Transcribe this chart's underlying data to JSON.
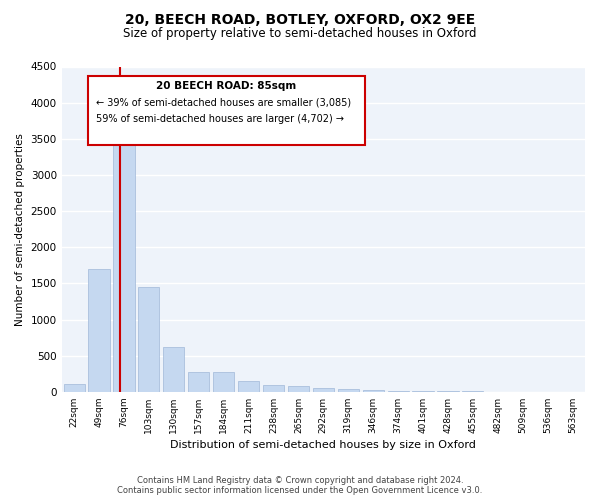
{
  "title": "20, BEECH ROAD, BOTLEY, OXFORD, OX2 9EE",
  "subtitle": "Size of property relative to semi-detached houses in Oxford",
  "xlabel": "Distribution of semi-detached houses by size in Oxford",
  "ylabel": "Number of semi-detached properties",
  "categories": [
    "22sqm",
    "49sqm",
    "76sqm",
    "103sqm",
    "130sqm",
    "157sqm",
    "184sqm",
    "211sqm",
    "238sqm",
    "265sqm",
    "292sqm",
    "319sqm",
    "346sqm",
    "374sqm",
    "401sqm",
    "428sqm",
    "455sqm",
    "482sqm",
    "509sqm",
    "536sqm",
    "563sqm"
  ],
  "values": [
    110,
    1700,
    3500,
    1450,
    620,
    270,
    270,
    145,
    95,
    80,
    55,
    40,
    30,
    15,
    10,
    8,
    5,
    4,
    3,
    3,
    3
  ],
  "bar_color": "#c5d8f0",
  "bar_edge_color": "#a0b8d8",
  "property_label": "20 BEECH ROAD: 85sqm",
  "pct_smaller": 39,
  "n_smaller": 3085,
  "pct_larger": 59,
  "n_larger": 4702,
  "vline_color": "#cc0000",
  "annotation_box_color": "#cc0000",
  "ylim": [
    0,
    4500
  ],
  "yticks": [
    0,
    500,
    1000,
    1500,
    2000,
    2500,
    3000,
    3500,
    4000,
    4500
  ],
  "background_color": "#ffffff",
  "plot_bg_color": "#eef3fa",
  "grid_color": "#ffffff",
  "footer_line1": "Contains HM Land Registry data © Crown copyright and database right 2024.",
  "footer_line2": "Contains public sector information licensed under the Open Government Licence v3.0."
}
